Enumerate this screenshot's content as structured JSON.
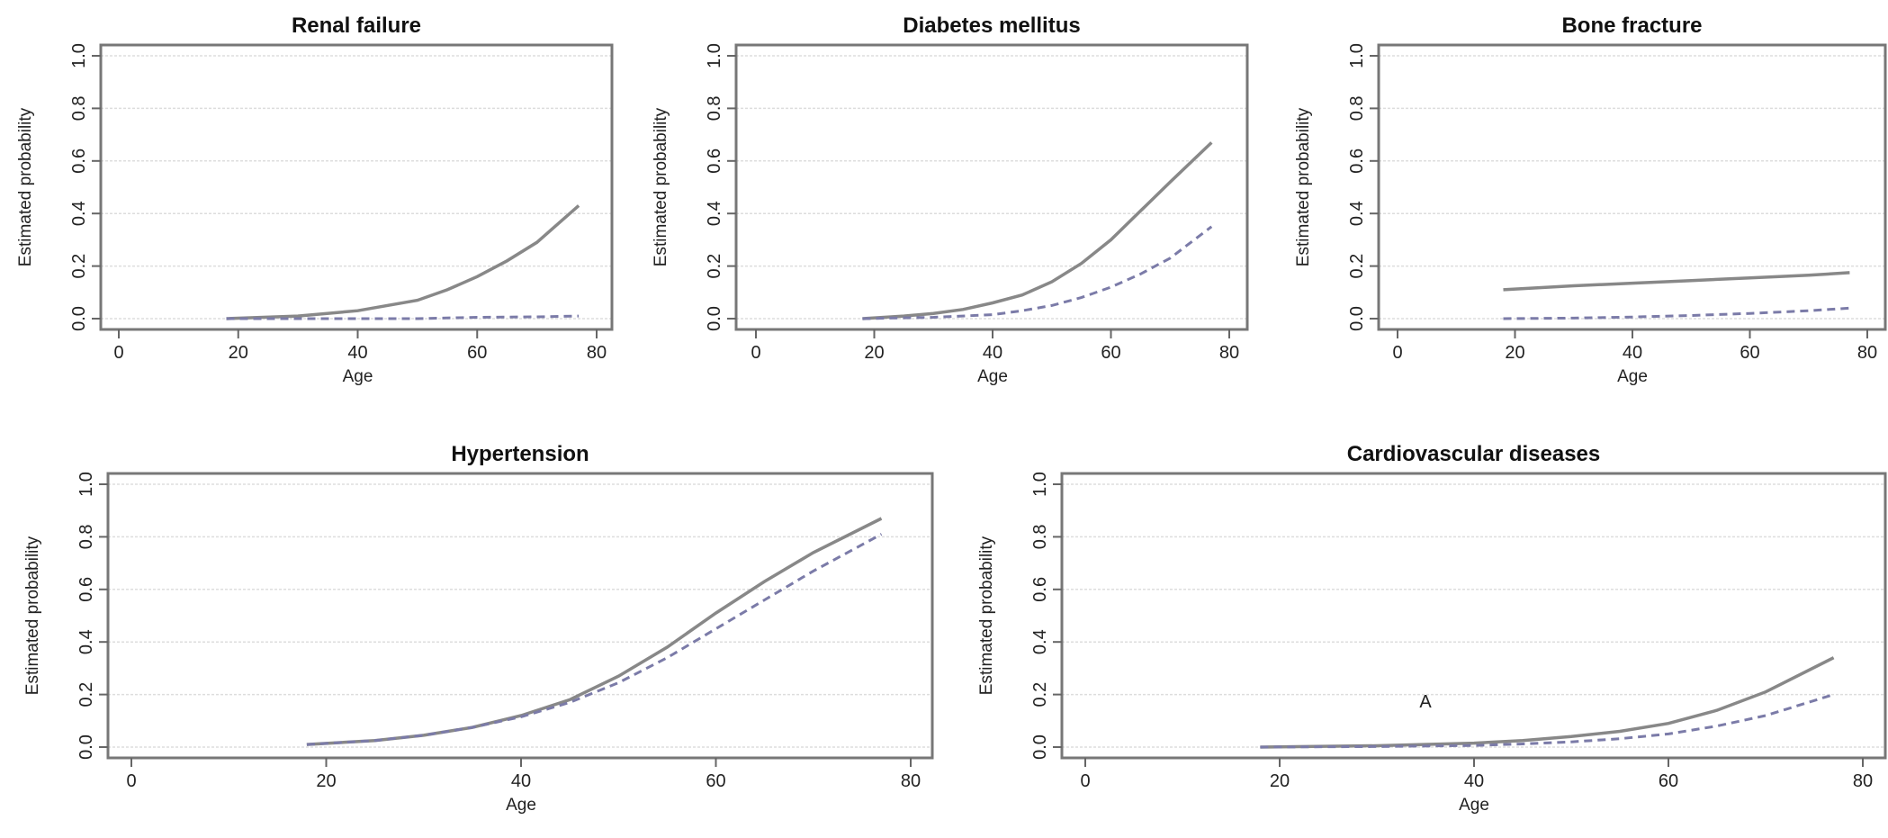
{
  "chart_data": [
    {
      "type": "line",
      "title": "Renal failure",
      "xlabel": "Age",
      "ylabel": "Estimated probability",
      "xlim": [
        0,
        80
      ],
      "ylim": [
        0,
        1
      ],
      "xticks": [
        "0",
        "20",
        "40",
        "60",
        "80"
      ],
      "yticks": [
        "0.0",
        "0.2",
        "0.4",
        "0.6",
        "0.8",
        "1.0"
      ],
      "grid": true,
      "series": [
        {
          "style": "solid",
          "color": "#888888",
          "x": [
            18,
            30,
            40,
            50,
            55,
            60,
            65,
            70,
            77
          ],
          "y": [
            0.0,
            0.01,
            0.03,
            0.07,
            0.11,
            0.16,
            0.22,
            0.29,
            0.43
          ]
        },
        {
          "style": "dashed",
          "color": "#7b7ba8",
          "x": [
            18,
            30,
            40,
            50,
            60,
            70,
            77
          ],
          "y": [
            0.0,
            0.0,
            0.0,
            0.0,
            0.005,
            0.007,
            0.01
          ]
        }
      ]
    },
    {
      "type": "line",
      "title": "Diabetes mellitus",
      "xlabel": "Age",
      "ylabel": "Estimated probability",
      "xlim": [
        0,
        80
      ],
      "ylim": [
        0,
        1
      ],
      "xticks": [
        "0",
        "20",
        "40",
        "60",
        "80"
      ],
      "yticks": [
        "0.0",
        "0.2",
        "0.4",
        "0.6",
        "0.8",
        "1.0"
      ],
      "grid": true,
      "series": [
        {
          "style": "solid",
          "color": "#888888",
          "x": [
            18,
            25,
            30,
            35,
            40,
            45,
            50,
            55,
            60,
            65,
            70,
            77
          ],
          "y": [
            0.0,
            0.01,
            0.02,
            0.035,
            0.06,
            0.09,
            0.14,
            0.21,
            0.3,
            0.41,
            0.52,
            0.67
          ]
        },
        {
          "style": "dashed",
          "color": "#7b7ba8",
          "x": [
            18,
            30,
            40,
            45,
            50,
            55,
            60,
            65,
            70,
            77
          ],
          "y": [
            0.0,
            0.005,
            0.015,
            0.03,
            0.05,
            0.08,
            0.12,
            0.17,
            0.23,
            0.35
          ]
        }
      ]
    },
    {
      "type": "line",
      "title": "Bone fracture",
      "xlabel": "Age",
      "ylabel": "Estimated probability",
      "xlim": [
        0,
        80
      ],
      "ylim": [
        0,
        1
      ],
      "xticks": [
        "0",
        "20",
        "40",
        "60",
        "80"
      ],
      "yticks": [
        "0.0",
        "0.2",
        "0.4",
        "0.6",
        "0.8",
        "1.0"
      ],
      "grid": true,
      "series": [
        {
          "style": "solid",
          "color": "#888888",
          "x": [
            18,
            30,
            40,
            50,
            60,
            70,
            77
          ],
          "y": [
            0.11,
            0.125,
            0.135,
            0.145,
            0.155,
            0.165,
            0.175
          ]
        },
        {
          "style": "dashed",
          "color": "#7b7ba8",
          "x": [
            18,
            30,
            40,
            50,
            60,
            70,
            77
          ],
          "y": [
            0.0,
            0.002,
            0.006,
            0.012,
            0.02,
            0.03,
            0.04
          ]
        }
      ]
    },
    {
      "type": "line",
      "title": "Hypertension",
      "xlabel": "Age",
      "ylabel": "Estimated probability",
      "xlim": [
        0,
        80
      ],
      "ylim": [
        0,
        1
      ],
      "xticks": [
        "0",
        "20",
        "40",
        "60",
        "80"
      ],
      "yticks": [
        "0.0",
        "0.2",
        "0.4",
        "0.6",
        "0.8",
        "1.0"
      ],
      "grid": true,
      "series": [
        {
          "style": "solid",
          "color": "#888888",
          "x": [
            18,
            25,
            30,
            35,
            40,
            45,
            50,
            55,
            60,
            65,
            70,
            77
          ],
          "y": [
            0.01,
            0.025,
            0.045,
            0.075,
            0.12,
            0.18,
            0.27,
            0.38,
            0.51,
            0.63,
            0.74,
            0.87
          ]
        },
        {
          "style": "dashed",
          "color": "#7b7ba8",
          "x": [
            18,
            25,
            30,
            35,
            40,
            45,
            50,
            55,
            60,
            65,
            70,
            77
          ],
          "y": [
            0.01,
            0.025,
            0.045,
            0.075,
            0.115,
            0.17,
            0.245,
            0.34,
            0.45,
            0.56,
            0.67,
            0.81
          ]
        }
      ]
    },
    {
      "type": "line",
      "title": "Cardiovascular diseases",
      "xlabel": "Age",
      "ylabel": "Estimated probability",
      "xlim": [
        0,
        80
      ],
      "ylim": [
        0,
        1
      ],
      "xticks": [
        "0",
        "20",
        "40",
        "60",
        "80"
      ],
      "yticks": [
        "0.0",
        "0.2",
        "0.4",
        "0.6",
        "0.8",
        "1.0"
      ],
      "grid": true,
      "annotations": [
        {
          "text": "A",
          "x": 35,
          "y": 0.15
        }
      ],
      "series": [
        {
          "style": "solid",
          "color": "#888888",
          "x": [
            18,
            30,
            40,
            45,
            50,
            55,
            60,
            65,
            70,
            77
          ],
          "y": [
            0.0,
            0.005,
            0.015,
            0.025,
            0.04,
            0.06,
            0.09,
            0.14,
            0.21,
            0.34
          ]
        },
        {
          "style": "dashed",
          "color": "#7b7ba8",
          "x": [
            18,
            30,
            40,
            45,
            50,
            55,
            60,
            65,
            70,
            77
          ],
          "y": [
            0.0,
            0.002,
            0.006,
            0.012,
            0.02,
            0.032,
            0.05,
            0.08,
            0.12,
            0.2
          ]
        }
      ]
    }
  ]
}
